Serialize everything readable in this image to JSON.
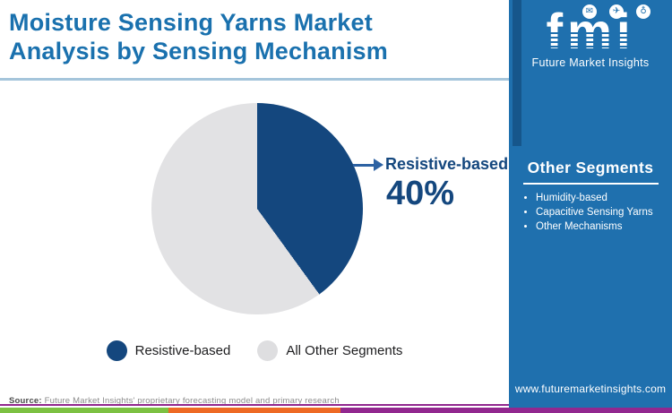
{
  "header": {
    "title_line1": "Moisture Sensing Yarns Market",
    "title_line2": "Analysis by Sensing Mechanism",
    "title_color": "#1a71ae"
  },
  "logo": {
    "brand": "fmi",
    "tagline": "Future Market Insights",
    "icon_glyphs": {
      "mail": "✉",
      "plane": "✈",
      "globe": "♁"
    }
  },
  "sidebar": {
    "background": "#1f70ae",
    "heading": "Other Segments",
    "items": [
      "Humidity-based",
      "Capacitive Sensing Yarns",
      "Other Mechanisms"
    ],
    "url": "www.futuremarketinsights.com"
  },
  "chart_data": {
    "type": "pie",
    "title": "Moisture Sensing Yarns Market Analysis by Sensing Mechanism",
    "labels": [
      "Resistive-based",
      "All Other Segments"
    ],
    "values": [
      40,
      60
    ],
    "colors": [
      "#14477e",
      "#e2e2e4"
    ],
    "start_angle_deg": 0,
    "direction": "clockwise",
    "legend_position": "bottom",
    "callout": {
      "label": "Resistive-based",
      "value": "40%"
    }
  },
  "legend": {
    "items": [
      {
        "label": "Resistive-based",
        "color": "#14477e"
      },
      {
        "label": "All Other Segments",
        "color": "#dedee0"
      }
    ]
  },
  "footer": {
    "source_label": "Source:",
    "source_text": " Future Market Insights' proprietary forecasting model and primary research",
    "purple_line_color": "#92278f",
    "stripe_colors": {
      "green": "#7cc142",
      "orange": "#ee6a24",
      "purple": "#92278f"
    }
  }
}
